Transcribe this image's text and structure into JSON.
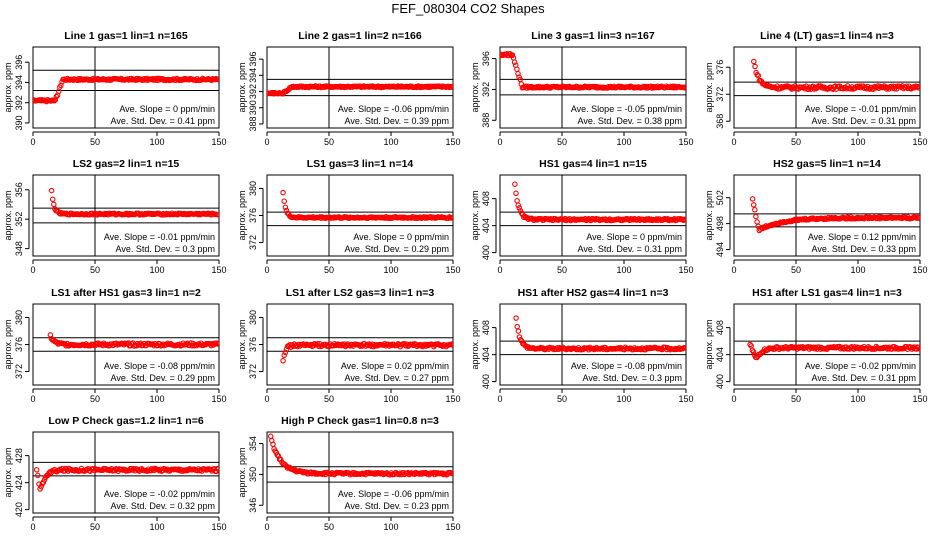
{
  "title": "FEF_080304  CO2 Shapes",
  "chart_data": [
    {
      "type": "scatter",
      "title": "Line 1 gas=1 lin=1 n=165",
      "ylabel": "approx. ppm",
      "xlim": [
        0,
        150
      ],
      "ylim": [
        389.5,
        397.5
      ],
      "xticks": [
        0,
        50,
        100,
        150
      ],
      "yticks": [
        390,
        392,
        394,
        396
      ],
      "hlines": [
        393.2,
        395.2
      ],
      "vline": 50,
      "slope_label": "Ave. Slope = ",
      "slope": "0",
      "slope_unit": "ppm/min",
      "sd_label": "Ave. Std. Dev. = ",
      "sd": "0.41",
      "sd_unit": "ppm",
      "shape": {
        "kind": "step",
        "start": 392.2,
        "end": 394.3,
        "t0": 18,
        "t1": 24,
        "tend": 150,
        "noise": 0.1
      }
    },
    {
      "type": "scatter",
      "title": "Line 2 gas=1 lin=2 n=166",
      "ylabel": "approx. ppm",
      "xlim": [
        0,
        150
      ],
      "ylim": [
        387.5,
        397.5
      ],
      "xticks": [
        0,
        50,
        100,
        150
      ],
      "yticks": [
        388,
        390,
        392,
        394,
        396
      ],
      "hlines": [
        391.5,
        393.5
      ],
      "vline": 50,
      "slope_label": "Ave. Slope = ",
      "slope": "-0.06",
      "slope_unit": "ppm/min",
      "sd_label": "Ave. Std. Dev. = ",
      "sd": "0.39",
      "sd_unit": "ppm",
      "shape": {
        "kind": "step",
        "start": 391.8,
        "end": 392.6,
        "t0": 13,
        "t1": 20,
        "tend": 150,
        "noise": 0.1
      }
    },
    {
      "type": "scatter",
      "title": "Line 3 gas=1 lin=3 n=167",
      "ylabel": "approx. ppm",
      "xlim": [
        0,
        150
      ],
      "ylim": [
        387,
        397.5
      ],
      "xticks": [
        0,
        50,
        100,
        150
      ],
      "yticks": [
        388,
        392,
        396
      ],
      "hlines": [
        391.3,
        393.3
      ],
      "vline": 50,
      "slope_label": "Ave. Slope = ",
      "slope": "-0.05",
      "slope_unit": "ppm/min",
      "sd_label": "Ave. Std. Dev. = ",
      "sd": "0.38",
      "sd_unit": "ppm",
      "shape": {
        "kind": "step",
        "start": 396.5,
        "end": 392.3,
        "t0": 10,
        "t1": 18,
        "tend": 150,
        "noise": 0.12
      }
    },
    {
      "type": "scatter",
      "title": "Line 4 (LT) gas=1 lin=4 n=3",
      "ylabel": "approx. ppm",
      "xlim": [
        0,
        150
      ],
      "ylim": [
        367,
        379
      ],
      "xticks": [
        0,
        50,
        100,
        150
      ],
      "yticks": [
        368,
        372,
        376
      ],
      "hlines": [
        371.8,
        373.8
      ],
      "vline": 50,
      "slope_label": "Ave. Slope = ",
      "slope": "-0.01",
      "slope_unit": "ppm/min",
      "sd_label": "Ave. Std. Dev. = ",
      "sd": "0.31",
      "sd_unit": "ppm",
      "shape": {
        "kind": "decay",
        "start": 376.8,
        "end": 373.0,
        "t0": 16,
        "tau": 4,
        "tend": 150,
        "noise": 0.25
      }
    },
    {
      "type": "scatter",
      "title": "LS2 gas=2 lin=1 n=15",
      "ylabel": "approx. ppm",
      "xlim": [
        0,
        150
      ],
      "ylim": [
        347,
        358
      ],
      "xticks": [
        0,
        50,
        100,
        150
      ],
      "yticks": [
        348,
        352,
        356
      ],
      "hlines": [
        351.5,
        353.5
      ],
      "vline": 50,
      "slope_label": "Ave. Slope = ",
      "slope": "-0.01",
      "slope_unit": "ppm/min",
      "sd_label": "Ave. Std. Dev. = ",
      "sd": "0.3",
      "sd_unit": "ppm",
      "shape": {
        "kind": "decay",
        "start": 355.8,
        "end": 352.7,
        "t0": 15,
        "tau": 2,
        "tend": 150,
        "noise": 0.12
      }
    },
    {
      "type": "scatter",
      "title": "LS1 gas=3 lin=1 n=14",
      "ylabel": "approx. ppm",
      "xlim": [
        0,
        150
      ],
      "ylim": [
        370,
        382
      ],
      "xticks": [
        0,
        50,
        100,
        150
      ],
      "yticks": [
        372,
        376,
        380
      ],
      "hlines": [
        374.5,
        376.5
      ],
      "vline": 50,
      "slope_label": "Ave. Slope = ",
      "slope": "0",
      "slope_unit": "ppm/min",
      "sd_label": "Ave. Std. Dev. = ",
      "sd": "0.29",
      "sd_unit": "ppm",
      "shape": {
        "kind": "decay",
        "start": 379.5,
        "end": 375.7,
        "t0": 13,
        "tau": 2,
        "tend": 150,
        "noise": 0.12
      }
    },
    {
      "type": "scatter",
      "title": "HS1 gas=4 lin=1 n=15",
      "ylabel": "approx. ppm",
      "xlim": [
        0,
        150
      ],
      "ylim": [
        399.5,
        411.5
      ],
      "xticks": [
        0,
        50,
        100,
        150
      ],
      "yticks": [
        400,
        404,
        408
      ],
      "hlines": [
        404,
        406
      ],
      "vline": 50,
      "slope_label": "Ave. Slope = ",
      "slope": "0",
      "slope_unit": "ppm/min",
      "sd_label": "Ave. Std. Dev. = ",
      "sd": "0.31",
      "sd_unit": "ppm",
      "shape": {
        "kind": "decay",
        "start": 410.2,
        "end": 404.9,
        "t0": 12,
        "tau": 3,
        "tend": 150,
        "noise": 0.15
      }
    },
    {
      "type": "scatter",
      "title": "HS2 gas=5 lin=1 n=14",
      "ylabel": "approx. ppm",
      "xlim": [
        0,
        150
      ],
      "ylim": [
        493,
        505.5
      ],
      "xticks": [
        0,
        50,
        100,
        150
      ],
      "yticks": [
        494,
        498,
        502
      ],
      "hlines": [
        497.5,
        499.5
      ],
      "vline": 50,
      "slope_label": "Ave. Slope = ",
      "slope": "0.12",
      "slope_unit": "ppm/min",
      "sd_label": "Ave. Std. Dev. = ",
      "sd": "0.33",
      "sd_unit": "ppm",
      "shape": {
        "kind": "dip",
        "start": 501.8,
        "low": 497.0,
        "end": 498.9,
        "t0": 15,
        "t1": 20,
        "tau": 18,
        "tend": 150,
        "noise": 0.15
      }
    },
    {
      "type": "scatter",
      "title": "LS1 after HS1 gas=3 lin=1 n=2",
      "ylabel": "approx. ppm",
      "xlim": [
        0,
        150
      ],
      "ylim": [
        370,
        382
      ],
      "xticks": [
        0,
        50,
        100,
        150
      ],
      "yticks": [
        372,
        376,
        380
      ],
      "hlines": [
        375,
        377
      ],
      "vline": 50,
      "slope_label": "Ave. Slope = ",
      "slope": "-0.08",
      "slope_unit": "ppm/min",
      "sd_label": "Ave. Std. Dev. = ",
      "sd": "0.29",
      "sd_unit": "ppm",
      "shape": {
        "kind": "decay",
        "start": 377.3,
        "end": 376.0,
        "t0": 14,
        "tau": 3,
        "tend": 150,
        "noise": 0.22
      }
    },
    {
      "type": "scatter",
      "title": "LS1 after LS2 gas=3 lin=1 n=3",
      "ylabel": "approx. ppm",
      "xlim": [
        0,
        150
      ],
      "ylim": [
        370,
        382
      ],
      "xticks": [
        0,
        50,
        100,
        150
      ],
      "yticks": [
        372,
        376,
        380
      ],
      "hlines": [
        375,
        377
      ],
      "vline": 50,
      "slope_label": "Ave. Slope = ",
      "slope": "0.02",
      "slope_unit": "ppm/min",
      "sd_label": "Ave. Std. Dev. = ",
      "sd": "0.27",
      "sd_unit": "ppm",
      "shape": {
        "kind": "decay",
        "start": 373.8,
        "end": 375.9,
        "t0": 13,
        "tau": 2,
        "tend": 150,
        "noise": 0.22
      }
    },
    {
      "type": "scatter",
      "title": "HS1 after HS2 gas=4 lin=1 n=3",
      "ylabel": "approx. ppm",
      "xlim": [
        0,
        150
      ],
      "ylim": [
        399.5,
        411.5
      ],
      "xticks": [
        0,
        50,
        100,
        150
      ],
      "yticks": [
        400,
        404,
        408
      ],
      "hlines": [
        404,
        406
      ],
      "vline": 50,
      "slope_label": "Ave. Slope = ",
      "slope": "-0.08",
      "slope_unit": "ppm/min",
      "sd_label": "Ave. Std. Dev. = ",
      "sd": "0.3",
      "sd_unit": "ppm",
      "shape": {
        "kind": "decay",
        "start": 409.5,
        "end": 404.9,
        "t0": 13,
        "tau": 3,
        "tend": 150,
        "noise": 0.18
      }
    },
    {
      "type": "scatter",
      "title": "HS1 after LS1 gas=4 lin=1 n=3",
      "ylabel": "approx. ppm",
      "xlim": [
        0,
        150
      ],
      "ylim": [
        399.5,
        411.5
      ],
      "xticks": [
        0,
        50,
        100,
        150
      ],
      "yticks": [
        400,
        404,
        408
      ],
      "hlines": [
        404,
        406
      ],
      "vline": 50,
      "slope_label": "Ave. Slope = ",
      "slope": "-0.02",
      "slope_unit": "ppm/min",
      "sd_label": "Ave. Std. Dev. = ",
      "sd": "0.31",
      "sd_unit": "ppm",
      "shape": {
        "kind": "dip",
        "start": 405.5,
        "low": 403.3,
        "end": 405.0,
        "t0": 13,
        "t1": 18,
        "tau": 4,
        "tend": 150,
        "noise": 0.2
      }
    },
    {
      "type": "scatter",
      "title": "Low P Check gas=1.2 lin=1 n=6",
      "ylabel": "approx. ppm",
      "xlim": [
        0,
        150
      ],
      "ylim": [
        419.5,
        431.5
      ],
      "xticks": [
        0,
        50,
        100,
        150
      ],
      "yticks": [
        420,
        424,
        428
      ],
      "hlines": [
        425,
        427
      ],
      "vline": 50,
      "slope_label": "Ave. Slope = ",
      "slope": "-0.02",
      "slope_unit": "ppm/min",
      "sd_label": "Ave. Std. Dev. = ",
      "sd": "0.32",
      "sd_unit": "ppm",
      "shape": {
        "kind": "dip",
        "start": 425.8,
        "low": 422.8,
        "end": 425.9,
        "t0": 3,
        "t1": 6,
        "tau": 4,
        "tend": 150,
        "noise": 0.22
      }
    },
    {
      "type": "scatter",
      "title": "High P Check gas=1 lin=0.8 n=3",
      "ylabel": "approx. ppm",
      "xlim": [
        0,
        150
      ],
      "ylim": [
        345,
        355.5
      ],
      "xticks": [
        0,
        50,
        100,
        150
      ],
      "yticks": [
        346,
        350,
        354
      ],
      "hlines": [
        349,
        351
      ],
      "vline": 50,
      "slope_label": "Ave. Slope = ",
      "slope": "-0.06",
      "slope_unit": "ppm/min",
      "sd_label": "Ave. Std. Dev. = ",
      "sd": "0.23",
      "sd_unit": "ppm",
      "shape": {
        "kind": "decay",
        "start": 354.8,
        "end": 350.1,
        "t0": 3,
        "tau": 8,
        "tend": 150,
        "noise": 0.15
      }
    }
  ],
  "colors": {
    "points": "#ff0000",
    "axes": "#000000",
    "background": "#ffffff"
  }
}
